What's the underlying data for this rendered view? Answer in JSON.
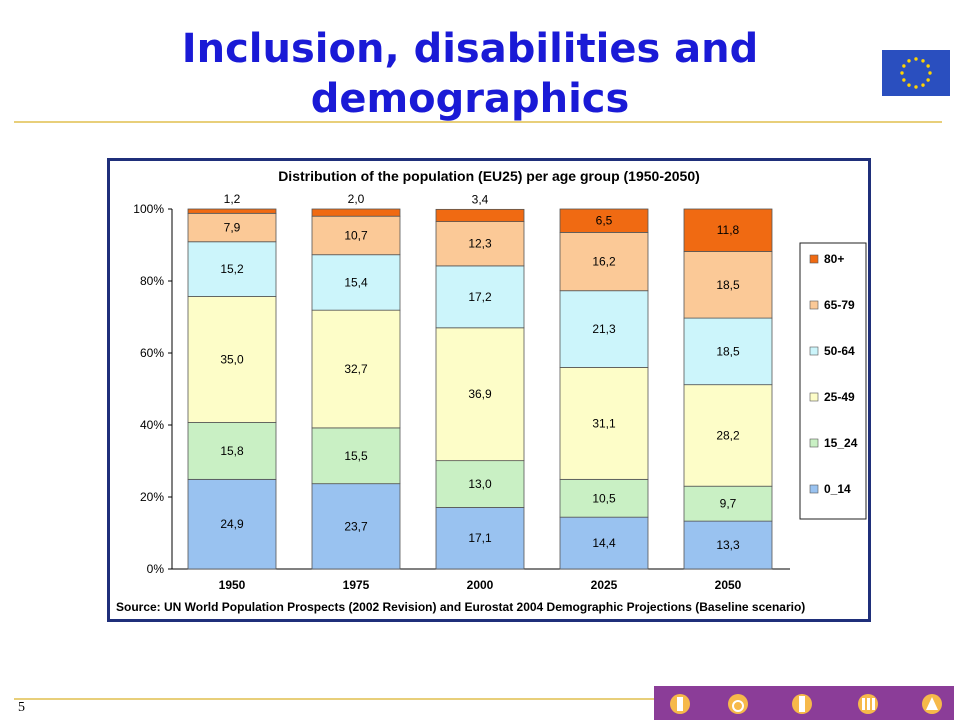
{
  "slide": {
    "title": "Inclusion, disabilities and demographics",
    "number": "5"
  },
  "chart_data": {
    "type": "bar",
    "stacked": true,
    "percent": true,
    "title": "Distribution of the population (EU25) per age group (1950-2050)",
    "source": "Source: UN World Population Prospects (2002 Revision) and Eurostat 2004 Demographic Projections (Baseline scenario)",
    "categories": [
      "1950",
      "1975",
      "2000",
      "2025",
      "2050"
    ],
    "ylim": [
      0,
      100
    ],
    "yticks": [
      "0%",
      "20%",
      "40%",
      "60%",
      "80%",
      "100%"
    ],
    "grid": false,
    "legend_position": "right",
    "series": [
      {
        "name": "0_14",
        "color": "#99c2f0",
        "values": [
          24.9,
          23.7,
          17.1,
          14.4,
          13.3
        ],
        "labels": [
          "24,9",
          "23,7",
          "17,1",
          "14,4",
          "13,3"
        ]
      },
      {
        "name": "15_24",
        "color": "#c9f0c4",
        "values": [
          15.8,
          15.5,
          13.0,
          10.5,
          9.7
        ],
        "labels": [
          "15,8",
          "15,5",
          "13,0",
          "10,5",
          "9,7"
        ]
      },
      {
        "name": "25-49",
        "color": "#fdfdc8",
        "values": [
          35.0,
          32.7,
          36.9,
          31.1,
          28.2
        ],
        "labels": [
          "35,0",
          "32,7",
          "36,9",
          "31,1",
          "28,2"
        ]
      },
      {
        "name": "50-64",
        "color": "#ccf5fb",
        "values": [
          15.2,
          15.4,
          17.2,
          21.3,
          18.5
        ],
        "labels": [
          "15,2",
          "15,4",
          "17,2",
          "21,3",
          "18,5"
        ]
      },
      {
        "name": "65-79",
        "color": "#fbc997",
        "values": [
          7.9,
          10.7,
          12.3,
          16.2,
          18.5
        ],
        "labels": [
          "7,9",
          "10,7",
          "12,3",
          "16,2",
          "18,5"
        ]
      },
      {
        "name": "80+",
        "color": "#f06a12",
        "values": [
          1.2,
          2.0,
          3.4,
          6.5,
          11.8
        ],
        "labels": [
          "1,2",
          "2,0",
          "3,4",
          "6,5",
          "11,8"
        ]
      }
    ],
    "legend_order": [
      "80+",
      "65-79",
      "50-64",
      "25-49",
      "15_24",
      "0_14"
    ]
  }
}
